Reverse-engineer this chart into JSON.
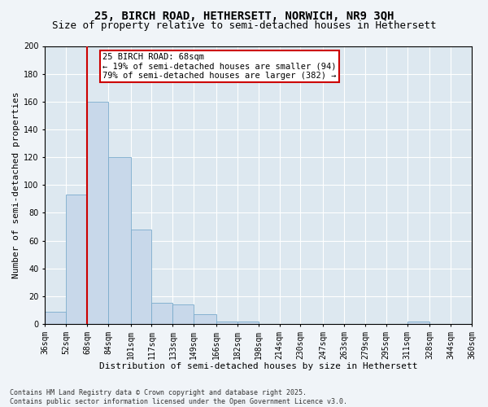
{
  "title_line1": "25, BIRCH ROAD, HETHERSETT, NORWICH, NR9 3QH",
  "title_line2": "Size of property relative to semi-detached houses in Hethersett",
  "xlabel": "Distribution of semi-detached houses by size in Hethersett",
  "ylabel": "Number of semi-detached properties",
  "bin_labels": [
    "36sqm",
    "52sqm",
    "68sqm",
    "84sqm",
    "101sqm",
    "117sqm",
    "133sqm",
    "149sqm",
    "166sqm",
    "182sqm",
    "198sqm",
    "214sqm",
    "230sqm",
    "247sqm",
    "263sqm",
    "279sqm",
    "295sqm",
    "311sqm",
    "328sqm",
    "344sqm",
    "360sqm"
  ],
  "bin_edges": [
    36,
    52,
    68,
    84,
    101,
    117,
    133,
    149,
    166,
    182,
    198,
    214,
    230,
    247,
    263,
    279,
    295,
    311,
    328,
    344,
    360
  ],
  "bar_heights": [
    9,
    93,
    160,
    120,
    68,
    15,
    14,
    7,
    2,
    2,
    0,
    0,
    0,
    0,
    0,
    0,
    0,
    2,
    0,
    0
  ],
  "bar_color": "#c8d8ea",
  "bar_edge_color": "#7aabcc",
  "red_line_x": 68,
  "annotation_title": "25 BIRCH ROAD: 68sqm",
  "annotation_line1": "← 19% of semi-detached houses are smaller (94)",
  "annotation_line2": "79% of semi-detached houses are larger (382) →",
  "annotation_box_facecolor": "#ffffff",
  "annotation_box_edgecolor": "#cc0000",
  "red_line_color": "#cc0000",
  "ylim": [
    0,
    200
  ],
  "yticks": [
    0,
    20,
    40,
    60,
    80,
    100,
    120,
    140,
    160,
    180,
    200
  ],
  "plot_bg_color": "#dde8f0",
  "fig_bg_color": "#f0f4f8",
  "footnote1": "Contains HM Land Registry data © Crown copyright and database right 2025.",
  "footnote2": "Contains public sector information licensed under the Open Government Licence v3.0.",
  "title_fontsize": 10,
  "subtitle_fontsize": 9,
  "axis_label_fontsize": 8,
  "tick_fontsize": 7,
  "annot_fontsize": 7.5,
  "footnote_fontsize": 6
}
